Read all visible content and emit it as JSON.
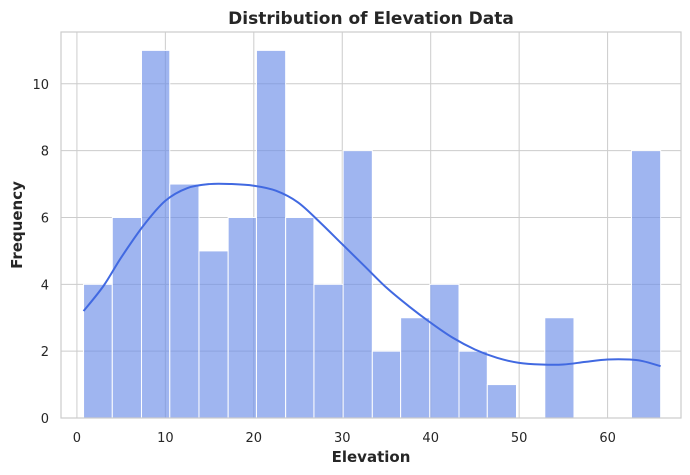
{
  "chart_data": {
    "type": "bar",
    "subtype": "histogram-with-kde",
    "title": "Distribution of Elevation Data",
    "xlabel": "Elevation",
    "ylabel": "Frequency",
    "xlim": [
      -1.8,
      68.3
    ],
    "ylim": [
      0,
      11.55
    ],
    "xticks": [
      0,
      10,
      20,
      30,
      40,
      50,
      60
    ],
    "yticks": [
      0,
      2,
      4,
      6,
      8,
      10
    ],
    "grid": true,
    "colors": {
      "bar_fill": "#6B8DE8",
      "bar_edge": "#ffffff",
      "kde_line": "#4169E1",
      "grid": "#cccccc",
      "axes_edge": "#cccccc"
    },
    "bins": [
      {
        "x0": 0.75,
        "x1": 4.0,
        "count": 4
      },
      {
        "x0": 4.0,
        "x1": 7.3,
        "count": 6
      },
      {
        "x0": 7.3,
        "x1": 10.5,
        "count": 11
      },
      {
        "x0": 10.5,
        "x1": 13.8,
        "count": 7
      },
      {
        "x0": 13.8,
        "x1": 17.1,
        "count": 5
      },
      {
        "x0": 17.1,
        "x1": 20.3,
        "count": 6
      },
      {
        "x0": 20.3,
        "x1": 23.6,
        "count": 11
      },
      {
        "x0": 23.6,
        "x1": 26.8,
        "count": 6
      },
      {
        "x0": 26.8,
        "x1": 30.1,
        "count": 4
      },
      {
        "x0": 30.1,
        "x1": 33.4,
        "count": 8
      },
      {
        "x0": 33.4,
        "x1": 36.6,
        "count": 2
      },
      {
        "x0": 36.6,
        "x1": 39.9,
        "count": 3
      },
      {
        "x0": 39.9,
        "x1": 43.2,
        "count": 4
      },
      {
        "x0": 43.2,
        "x1": 46.4,
        "count": 2
      },
      {
        "x0": 46.4,
        "x1": 49.7,
        "count": 1
      },
      {
        "x0": 49.7,
        "x1": 52.9,
        "count": 0
      },
      {
        "x0": 52.9,
        "x1": 56.2,
        "count": 3
      },
      {
        "x0": 56.2,
        "x1": 59.5,
        "count": 0
      },
      {
        "x0": 59.5,
        "x1": 62.7,
        "count": 0
      },
      {
        "x0": 62.7,
        "x1": 66.0,
        "count": 8
      }
    ],
    "kde": {
      "x": [
        0.75,
        3,
        5,
        7.5,
        10,
        12.5,
        15,
        17.5,
        20,
        22.5,
        25,
        27.5,
        30,
        32.5,
        35,
        37.5,
        40,
        42.5,
        45,
        47.5,
        50,
        52.5,
        55,
        57.5,
        60,
        62.5,
        64,
        66
      ],
      "y": [
        3.2,
        3.95,
        4.8,
        5.75,
        6.5,
        6.88,
        7.0,
        7.0,
        6.95,
        6.8,
        6.45,
        5.85,
        5.2,
        4.55,
        3.9,
        3.35,
        2.85,
        2.4,
        2.05,
        1.8,
        1.65,
        1.6,
        1.6,
        1.68,
        1.75,
        1.75,
        1.7,
        1.55
      ]
    }
  }
}
